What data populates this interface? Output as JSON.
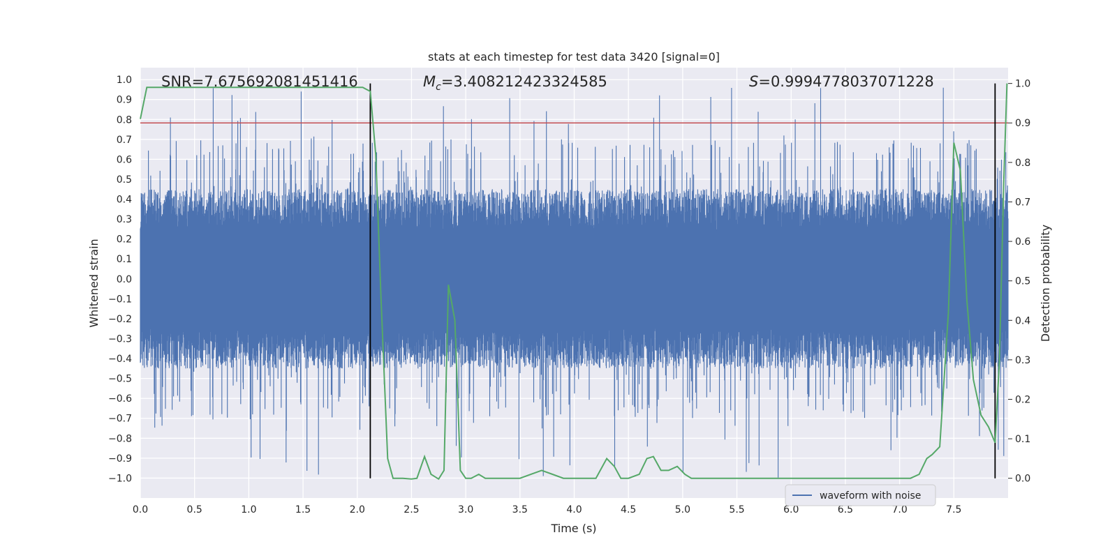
{
  "chart_data": {
    "type": "line",
    "title": "stats at each timestep for test data 3420 [signal=0]",
    "xlabel": "Time (s)",
    "ylabel_left": "Whitened strain",
    "ylabel_right": "Detection probability",
    "xlim": [
      0.0,
      8.0
    ],
    "ylim_left": [
      -1.1,
      1.06
    ],
    "ylim_right": [
      -0.05,
      1.04
    ],
    "x_ticks": [
      "0.0",
      "0.5",
      "1.0",
      "1.5",
      "2.0",
      "2.5",
      "3.0",
      "3.5",
      "4.0",
      "4.5",
      "5.0",
      "5.5",
      "6.0",
      "6.5",
      "7.0",
      "7.5"
    ],
    "y_left_ticks": [
      "1.0",
      "0.9",
      "0.8",
      "0.7",
      "0.6",
      "0.5",
      "0.4",
      "0.3",
      "0.2",
      "0.1",
      "0.0",
      "-0.1",
      "-0.2",
      "-0.3",
      "-0.4",
      "-0.5",
      "-0.6",
      "-0.7",
      "-0.8",
      "-0.9",
      "-1.0"
    ],
    "y_right_ticks": [
      "1.0",
      "0.9",
      "0.8",
      "0.7",
      "0.6",
      "0.5",
      "0.4",
      "0.3",
      "0.2",
      "0.1",
      "0.0"
    ],
    "grid": true,
    "annotations": {
      "snr": "SNR=7.675692081451416",
      "mc_symbol": "M",
      "mc_sub": "c",
      "mc_value": "=3.408212423324585",
      "s_symbol": "S",
      "s_value": "=0.9994778037071228"
    },
    "threshold_probability": 0.9,
    "vertical_lines_s": [
      2.12,
      7.88
    ],
    "legend": {
      "label": "waveform with noise",
      "position": "lower-right"
    },
    "series": [
      {
        "name": "waveform with noise",
        "axis": "left",
        "color": "#4c72b0",
        "style": "dense noise band",
        "typical_range": [
          -0.45,
          0.45
        ],
        "peak_range": [
          -1.0,
          0.96
        ]
      },
      {
        "name": "Detection probability",
        "axis": "right",
        "color": "#55a868",
        "x": [
          0.0,
          0.06,
          0.1,
          0.5,
          1.0,
          1.5,
          1.9,
          2.05,
          2.12,
          2.17,
          2.22,
          2.28,
          2.33,
          2.42,
          2.5,
          2.55,
          2.62,
          2.68,
          2.75,
          2.8,
          2.84,
          2.9,
          2.95,
          3.0,
          3.05,
          3.12,
          3.18,
          3.25,
          3.35,
          3.5,
          3.7,
          3.8,
          3.9,
          4.0,
          4.2,
          4.3,
          4.37,
          4.43,
          4.5,
          4.6,
          4.67,
          4.73,
          4.8,
          4.87,
          4.95,
          5.02,
          5.08,
          5.15,
          5.3,
          6.0,
          6.3,
          6.5,
          6.8,
          7.1,
          7.18,
          7.25,
          7.3,
          7.37,
          7.45,
          7.5,
          7.56,
          7.62,
          7.68,
          7.75,
          7.82,
          7.88,
          7.92,
          7.96,
          7.99
        ],
        "values": [
          0.91,
          0.99,
          0.99,
          0.99,
          0.99,
          0.99,
          0.99,
          0.99,
          0.98,
          0.82,
          0.45,
          0.05,
          0.0,
          0.0,
          -0.002,
          0.0,
          0.055,
          0.01,
          -0.002,
          0.02,
          0.49,
          0.4,
          0.02,
          0.0,
          0.0,
          0.01,
          0.0,
          0.0,
          0.0,
          0.0,
          0.02,
          0.01,
          0.0,
          0.0,
          0.0,
          0.05,
          0.03,
          0.0,
          0.0,
          0.01,
          0.05,
          0.055,
          0.02,
          0.02,
          0.03,
          0.01,
          0.0,
          0.0,
          0.0,
          0.0,
          0.0,
          0.0,
          0.0,
          0.0,
          0.01,
          0.05,
          0.06,
          0.08,
          0.42,
          0.85,
          0.78,
          0.45,
          0.25,
          0.16,
          0.13,
          0.09,
          0.3,
          0.75,
          1.0
        ]
      }
    ]
  }
}
